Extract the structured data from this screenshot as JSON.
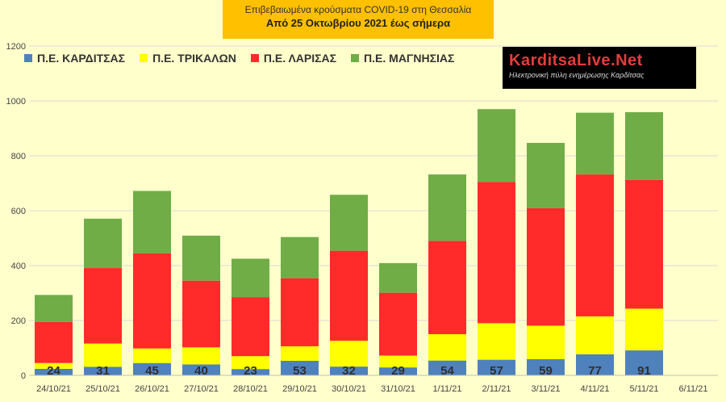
{
  "title": {
    "line1": "Επιβεβαιωμένα κρούσματα COVID-19 στη Θεσσαλία",
    "line2": "Από 25 Οκτωβρίου 2021 έως σήμερα"
  },
  "logo": {
    "brand": "KarditsaLive.Net",
    "tagline": "Ηλεκτρονική πύλη ενημέρωσης Καρδίτσας"
  },
  "chart_data": {
    "type": "bar",
    "stacked": true,
    "categories": [
      "24/10/21",
      "25/10/21",
      "26/10/21",
      "27/10/21",
      "28/10/21",
      "29/10/21",
      "30/10/21",
      "31/10/21",
      "1/11/21",
      "2/11/21",
      "3/11/21",
      "4/11/21",
      "5/11/21",
      "6/11/21"
    ],
    "series": [
      {
        "name": "Π.Ε. ΚΑΡΔΙΤΣΑΣ",
        "color": "#4f81bd",
        "values": [
          24,
          31,
          45,
          40,
          23,
          53,
          32,
          29,
          54,
          57,
          59,
          77,
          91,
          0
        ]
      },
      {
        "name": "Π.Ε. ΤΡΙΚΑΛΩΝ",
        "color": "#ffff00",
        "values": [
          21,
          85,
          53,
          62,
          47,
          53,
          94,
          43,
          96,
          133,
          122,
          138,
          152,
          0
        ]
      },
      {
        "name": "Π.Ε. ΛΑΡΙΣΑΣ",
        "color": "#ff2a2a",
        "values": [
          150,
          275,
          347,
          243,
          215,
          248,
          328,
          229,
          340,
          515,
          428,
          517,
          469,
          0
        ]
      },
      {
        "name": "Π.Ε. ΜΑΓΝΗΣΙΑΣ",
        "color": "#70ad47",
        "values": [
          98,
          180,
          227,
          164,
          140,
          150,
          204,
          108,
          242,
          265,
          238,
          225,
          247,
          0
        ]
      }
    ],
    "labels": [
      24,
      31,
      45,
      40,
      23,
      53,
      32,
      29,
      54,
      57,
      59,
      77,
      91,
      null
    ],
    "ylim": [
      0,
      1200
    ],
    "yticks": [
      0,
      200,
      400,
      600,
      800,
      1000,
      1200
    ],
    "grid": true,
    "legend": "top-left"
  }
}
